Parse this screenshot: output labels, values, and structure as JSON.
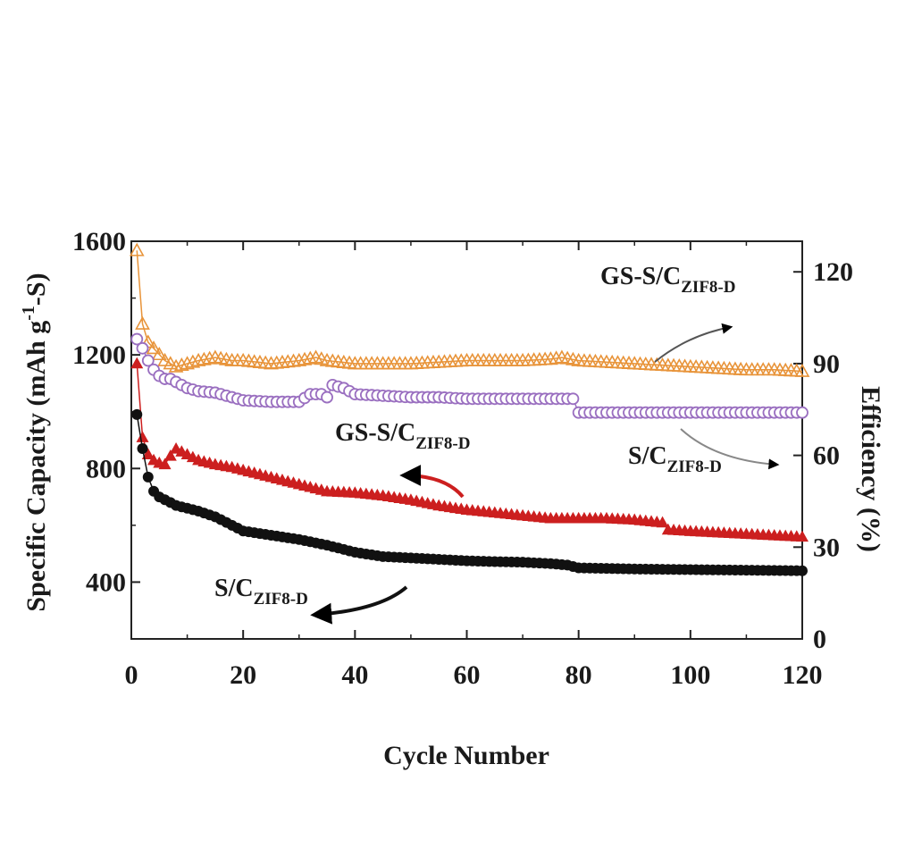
{
  "chart_data": {
    "type": "scatter",
    "xlabel": "Cycle Number",
    "ylabel_left": "Specific Capacity (mAh g⁻¹-S)",
    "ylabel_left_main": "Specific Capacity (mAh g",
    "ylabel_left_sup": "-1",
    "ylabel_left_tail": "-S)",
    "ylabel_right": "Efficiency (%)",
    "xlim": [
      0,
      120
    ],
    "ylim_left": [
      200,
      1600
    ],
    "ylim_right": [
      0,
      130
    ],
    "x_ticks": [
      0,
      20,
      40,
      60,
      80,
      100,
      120
    ],
    "x_tick_labels": [
      "0",
      "20",
      "40",
      "60",
      "80",
      "100",
      "120"
    ],
    "y_left_ticks": [
      400,
      800,
      1200,
      1600
    ],
    "y_left_tick_labels": [
      "400",
      "800",
      "1200",
      "1600"
    ],
    "y_right_ticks": [
      0,
      30,
      60,
      90,
      120
    ],
    "y_right_tick_labels": [
      "0",
      "30",
      "60",
      "90",
      "120"
    ],
    "grid": false,
    "series": [
      {
        "label": "GS-S/C ZIF8-D capacity",
        "axis": "left",
        "marker": "filled-triangle",
        "color": "#cc1f1f",
        "x": [
          1,
          2,
          3,
          4,
          5,
          6,
          7,
          8,
          10,
          12,
          15,
          18,
          20,
          25,
          30,
          35,
          40,
          45,
          50,
          55,
          60,
          65,
          70,
          75,
          80,
          85,
          90,
          95,
          96,
          100,
          105,
          110,
          115,
          120
        ],
        "y": [
          1170,
          910,
          850,
          830,
          820,
          815,
          845,
          870,
          850,
          830,
          815,
          805,
          795,
          770,
          745,
          720,
          715,
          705,
          690,
          670,
          655,
          645,
          635,
          625,
          625,
          625,
          620,
          610,
          585,
          580,
          575,
          570,
          565,
          560
        ]
      },
      {
        "label": "S/C ZIF8-D capacity",
        "axis": "left",
        "marker": "filled-circle",
        "color": "#111111",
        "x": [
          1,
          2,
          3,
          4,
          5,
          6,
          7,
          8,
          10,
          12,
          15,
          18,
          20,
          25,
          30,
          35,
          40,
          45,
          50,
          55,
          60,
          65,
          70,
          75,
          78,
          80,
          85,
          90,
          95,
          100,
          105,
          110,
          115,
          120
        ],
        "y": [
          990,
          870,
          770,
          720,
          700,
          690,
          680,
          670,
          660,
          650,
          630,
          600,
          580,
          565,
          550,
          530,
          505,
          490,
          485,
          480,
          475,
          472,
          470,
          465,
          460,
          450,
          448,
          446,
          445,
          444,
          443,
          442,
          441,
          440
        ]
      },
      {
        "label": "GS-S/C ZIF8-D efficiency",
        "axis": "right",
        "marker": "open-triangle",
        "color": "#e8943a",
        "x": [
          1,
          2,
          3,
          4,
          5,
          6,
          7,
          8,
          10,
          12,
          15,
          18,
          20,
          25,
          30,
          33,
          35,
          40,
          45,
          50,
          55,
          60,
          65,
          70,
          75,
          77,
          80,
          85,
          90,
          95,
          100,
          105,
          110,
          115,
          120
        ],
        "y": [
          127,
          103,
          97,
          95,
          93,
          91,
          90,
          89,
          90,
          91,
          92,
          91,
          91,
          90,
          91,
          92,
          91,
          90,
          90,
          90,
          90.5,
          91,
          91,
          91,
          91.5,
          92,
          91,
          90.5,
          90,
          89.5,
          89,
          88.5,
          88,
          88,
          87.5
        ]
      },
      {
        "label": "S/C ZIF8-D efficiency",
        "axis": "right",
        "marker": "open-circle",
        "color": "#9a6fc0",
        "x": [
          1,
          2,
          3,
          4,
          5,
          6,
          7,
          8,
          10,
          12,
          15,
          18,
          20,
          25,
          30,
          32,
          34,
          35,
          36,
          38,
          40,
          45,
          50,
          55,
          60,
          65,
          70,
          75,
          79,
          80,
          85,
          90,
          95,
          100,
          105,
          110,
          115,
          120
        ],
        "y": [
          98,
          95,
          91,
          88,
          86,
          85,
          85,
          84,
          82,
          81,
          80.5,
          79,
          78,
          77.5,
          77.5,
          80,
          80,
          79,
          83,
          82,
          80,
          79.5,
          79,
          79,
          78.5,
          78.5,
          78.5,
          78.5,
          78.5,
          74,
          74,
          74,
          74,
          74,
          74,
          74,
          74,
          74
        ]
      }
    ],
    "annotations": [
      {
        "main": "GS-S/C",
        "sub": "ZIF8-D",
        "points_to": "right axis"
      },
      {
        "main": "GS-S/C",
        "sub": "ZIF8-D",
        "points_to": "left axis"
      },
      {
        "main": "S/C",
        "sub": "ZIF8-D",
        "points_to": "right axis"
      },
      {
        "main": "S/C",
        "sub": "ZIF8-D",
        "points_to": "left axis"
      }
    ]
  }
}
